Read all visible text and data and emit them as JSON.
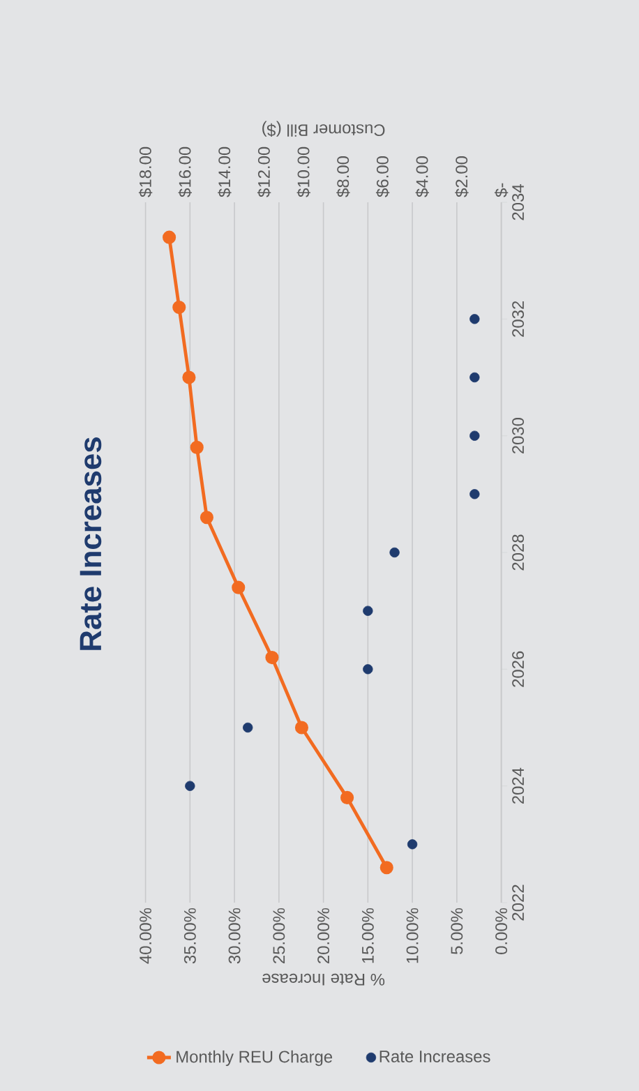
{
  "chart_data": {
    "type": "scatter",
    "title": "Rate Increases",
    "xlabel": "% Rate Increase",
    "x2label": "Customer Bill ($)",
    "ylim": [
      2022,
      2034
    ],
    "yticks": [
      2022,
      2024,
      2026,
      2028,
      2030,
      2032,
      2034
    ],
    "xlim": [
      40,
      0
    ],
    "xticks": [
      {
        "value": 0,
        "label": "0.00%"
      },
      {
        "value": 5,
        "label": "5.00%"
      },
      {
        "value": 10,
        "label": "10.00%"
      },
      {
        "value": 15,
        "label": "15.00%"
      },
      {
        "value": 20,
        "label": "20.00%"
      },
      {
        "value": 25,
        "label": "25.00%"
      },
      {
        "value": 30,
        "label": "30.00%"
      },
      {
        "value": 35,
        "label": "35.00%"
      },
      {
        "value": 40,
        "label": "40.00%"
      }
    ],
    "x2lim": [
      18,
      0
    ],
    "x2ticks": [
      {
        "value": 0,
        "label": "$-"
      },
      {
        "value": 2,
        "label": "$2.00"
      },
      {
        "value": 4,
        "label": "$4.00"
      },
      {
        "value": 6,
        "label": "$6.00"
      },
      {
        "value": 8,
        "label": "$8.00"
      },
      {
        "value": 10,
        "label": "$10.00"
      },
      {
        "value": 12,
        "label": "$12.00"
      },
      {
        "value": 14,
        "label": "$14.00"
      },
      {
        "value": 16,
        "label": "$16.00"
      },
      {
        "value": 18,
        "label": "$18.00"
      }
    ],
    "series": [
      {
        "name": "Monthly REU Charge",
        "type": "line",
        "axis": "x2",
        "color": "#f26b21",
        "x": [
          5.8,
          7.8,
          10.1,
          11.6,
          13.3,
          14.9,
          15.4,
          15.8,
          16.3,
          16.8
        ],
        "values": [
          2022.6,
          2023.8,
          2025.0,
          2026.2,
          2027.4,
          2028.6,
          2029.8,
          2031.0,
          2032.2,
          2033.4
        ]
      },
      {
        "name": "Rate Increases",
        "color": "#1f3b6e",
        "x": [
          10,
          35,
          28.5,
          15,
          15,
          12,
          3,
          3,
          3,
          3
        ],
        "values": [
          2023,
          2024,
          2025,
          2026,
          2027,
          2028,
          2029,
          2030,
          2031,
          2032
        ]
      }
    ],
    "grid": "x",
    "legend": "bottom",
    "marker": "circle"
  }
}
